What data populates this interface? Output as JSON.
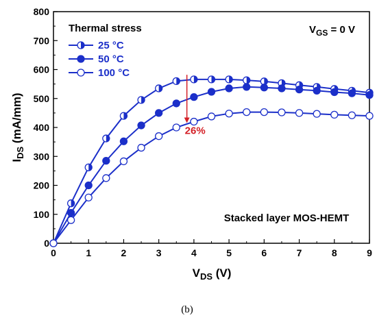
{
  "chart_data": {
    "type": "line",
    "xlabel": {
      "main": "V",
      "sub": "DS",
      "unit": " (V)"
    },
    "ylabel": {
      "main": "I",
      "sub": "DS",
      "unit": " (mA/mm)"
    },
    "xlim": [
      0,
      9
    ],
    "ylim": [
      0,
      800
    ],
    "xticks": [
      "0",
      "1",
      "2",
      "3",
      "4",
      "5",
      "6",
      "7",
      "8",
      "9"
    ],
    "yticks": [
      "0",
      "100",
      "200",
      "300",
      "400",
      "500",
      "600",
      "700",
      "800"
    ],
    "grid": false,
    "legend": {
      "title": "Thermal stress",
      "position": "top-left"
    },
    "series": [
      {
        "name": "25 °C",
        "marker": "half-filled-circle",
        "points": [
          [
            0,
            0
          ],
          [
            0.5,
            138
          ],
          [
            1,
            262
          ],
          [
            1.5,
            362
          ],
          [
            2,
            440
          ],
          [
            2.5,
            495
          ],
          [
            3,
            535
          ],
          [
            3.5,
            560
          ],
          [
            4,
            566
          ],
          [
            4.5,
            566
          ],
          [
            5,
            566
          ],
          [
            5.5,
            563
          ],
          [
            6,
            559
          ],
          [
            6.5,
            553
          ],
          [
            7,
            546
          ],
          [
            7.5,
            540
          ],
          [
            8,
            533
          ],
          [
            8.5,
            527
          ],
          [
            9,
            520
          ]
        ]
      },
      {
        "name": "50 °C",
        "marker": "filled-circle",
        "points": [
          [
            0,
            0
          ],
          [
            0.5,
            105
          ],
          [
            1,
            200
          ],
          [
            1.5,
            285
          ],
          [
            2,
            352
          ],
          [
            2.5,
            407
          ],
          [
            3,
            450
          ],
          [
            3.5,
            483
          ],
          [
            4,
            505
          ],
          [
            4.5,
            523
          ],
          [
            5,
            535
          ],
          [
            5.5,
            540
          ],
          [
            6,
            538
          ],
          [
            6.5,
            535
          ],
          [
            7,
            531
          ],
          [
            7.5,
            527
          ],
          [
            8,
            522
          ],
          [
            8.5,
            518
          ],
          [
            9,
            512
          ]
        ]
      },
      {
        "name": "100 °C",
        "marker": "open-circle",
        "points": [
          [
            0,
            0
          ],
          [
            0.5,
            80
          ],
          [
            1,
            158
          ],
          [
            1.5,
            225
          ],
          [
            2,
            283
          ],
          [
            2.5,
            330
          ],
          [
            3,
            370
          ],
          [
            3.5,
            400
          ],
          [
            4,
            420
          ],
          [
            4.5,
            438
          ],
          [
            5,
            448
          ],
          [
            5.5,
            453
          ],
          [
            6,
            453
          ],
          [
            6.5,
            452
          ],
          [
            7,
            450
          ],
          [
            7.5,
            447
          ],
          [
            8,
            444
          ],
          [
            8.5,
            442
          ],
          [
            9,
            440
          ]
        ]
      }
    ],
    "annotations": {
      "vgs": {
        "main": "V",
        "sub": "GS",
        "rest": " = 0 V"
      },
      "device": "Stacked layer MOS-HEMT",
      "reduction": {
        "text": "26%",
        "x": 3.8,
        "from": 563,
        "to": 425
      }
    },
    "caption": "(b)",
    "colors": {
      "series": "#1b2fc9",
      "arrow": "#d42027",
      "axis": "#000000"
    }
  }
}
